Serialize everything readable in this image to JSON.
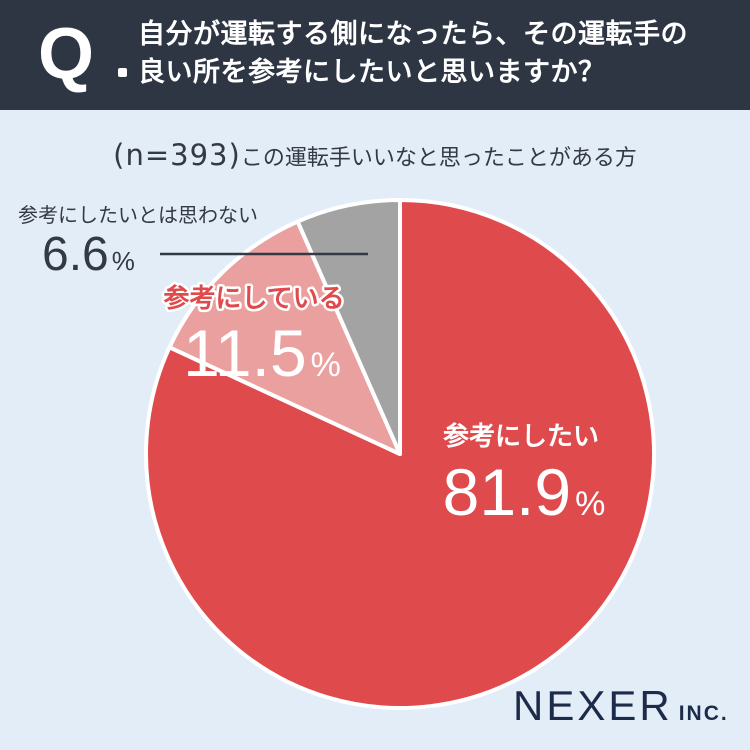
{
  "header": {
    "q_letter": "Q",
    "question_line1": "自分が運転する側になったら、その運転手の",
    "question_line2": "良い所を参考にしたいと思いますか？"
  },
  "subtitle": {
    "n_text": "(n=393)",
    "description": "この運転手いいなと思ったことがある方"
  },
  "chart_data": {
    "type": "pie",
    "categories": [
      "参考にしたい",
      "参考にしている",
      "参考にしたいとは思わない"
    ],
    "values": [
      81.9,
      11.5,
      6.6
    ],
    "value_labels": [
      "81.9",
      "11.5",
      "6.6"
    ],
    "unit": "%",
    "colors": [
      "#df4b4d",
      "#eba0a0",
      "#a3a3a3"
    ],
    "label_colors": [
      "#ffffff",
      "#ffffff",
      "#333333"
    ],
    "label_name_colors": [
      "#ffffff",
      "#df4b4d",
      "#333333"
    ],
    "start_angle_deg": 0,
    "direction": "clockwise"
  },
  "brand": {
    "logo_main": "NEXER",
    "logo_suffix": "INC."
  },
  "colors": {
    "header_bg": "#2e3644",
    "page_bg": "#e3edf8"
  }
}
